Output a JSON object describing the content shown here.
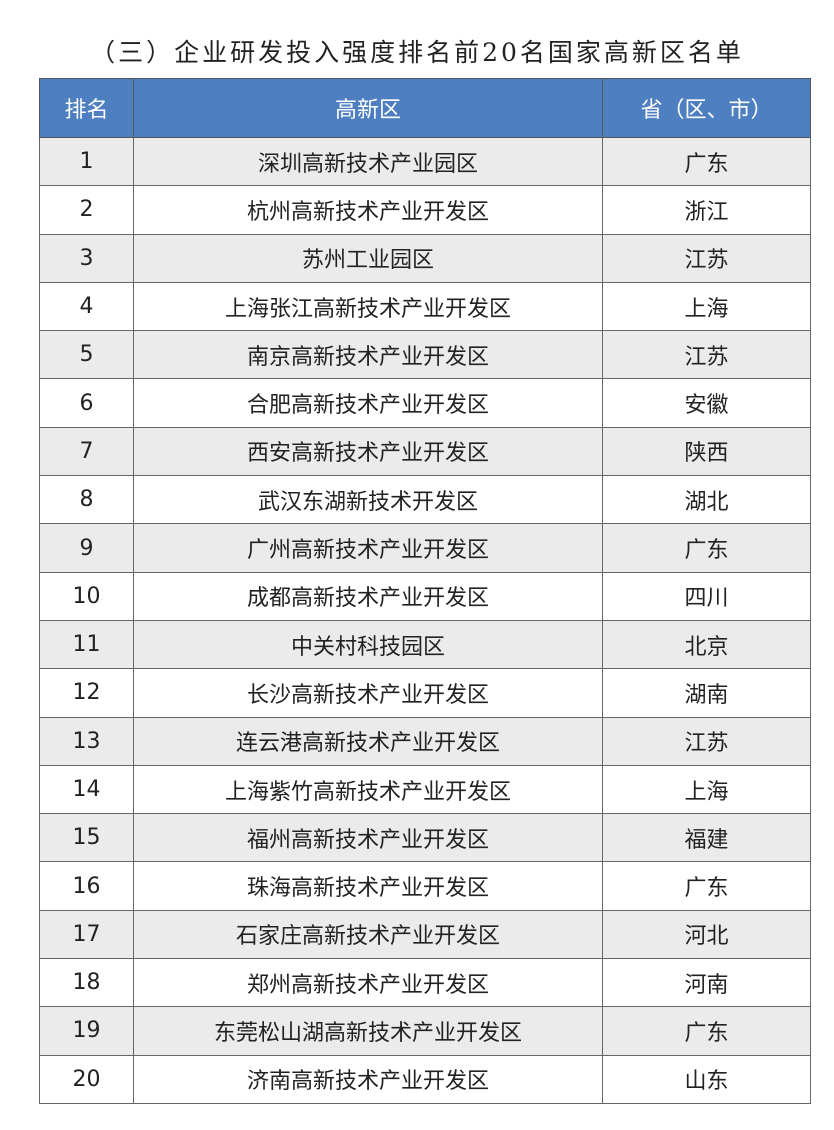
{
  "title": "（三）企业研发投入强度排名前20名国家高新区名单",
  "header": {
    "rank": "排名",
    "zone": "高新区",
    "province": "省（区、市）"
  },
  "header_color": "#4e7fc0",
  "rows": [
    {
      "rank": "1",
      "zone": "深圳高新技术产业园区",
      "province": "广东"
    },
    {
      "rank": "2",
      "zone": "杭州高新技术产业开发区",
      "province": "浙江"
    },
    {
      "rank": "3",
      "zone": "苏州工业园区",
      "province": "江苏"
    },
    {
      "rank": "4",
      "zone": "上海张江高新技术产业开发区",
      "province": "上海"
    },
    {
      "rank": "5",
      "zone": "南京高新技术产业开发区",
      "province": "江苏"
    },
    {
      "rank": "6",
      "zone": "合肥高新技术产业开发区",
      "province": "安徽"
    },
    {
      "rank": "7",
      "zone": "西安高新技术产业开发区",
      "province": "陕西"
    },
    {
      "rank": "8",
      "zone": "武汉东湖新技术开发区",
      "province": "湖北"
    },
    {
      "rank": "9",
      "zone": "广州高新技术产业开发区",
      "province": "广东"
    },
    {
      "rank": "10",
      "zone": "成都高新技术产业开发区",
      "province": "四川"
    },
    {
      "rank": "11",
      "zone": "中关村科技园区",
      "province": "北京"
    },
    {
      "rank": "12",
      "zone": "长沙高新技术产业开发区",
      "province": "湖南"
    },
    {
      "rank": "13",
      "zone": "连云港高新技术产业开发区",
      "province": "江苏"
    },
    {
      "rank": "14",
      "zone": "上海紫竹高新技术产业开发区",
      "province": "上海"
    },
    {
      "rank": "15",
      "zone": "福州高新技术产业开发区",
      "province": "福建"
    },
    {
      "rank": "16",
      "zone": "珠海高新技术产业开发区",
      "province": "广东"
    },
    {
      "rank": "17",
      "zone": "石家庄高新技术产业开发区",
      "province": "河北"
    },
    {
      "rank": "18",
      "zone": "郑州高新技术产业开发区",
      "province": "河南"
    },
    {
      "rank": "19",
      "zone": "东莞松山湖高新技术产业开发区",
      "province": "广东"
    },
    {
      "rank": "20",
      "zone": "济南高新技术产业开发区",
      "province": "山东"
    }
  ]
}
